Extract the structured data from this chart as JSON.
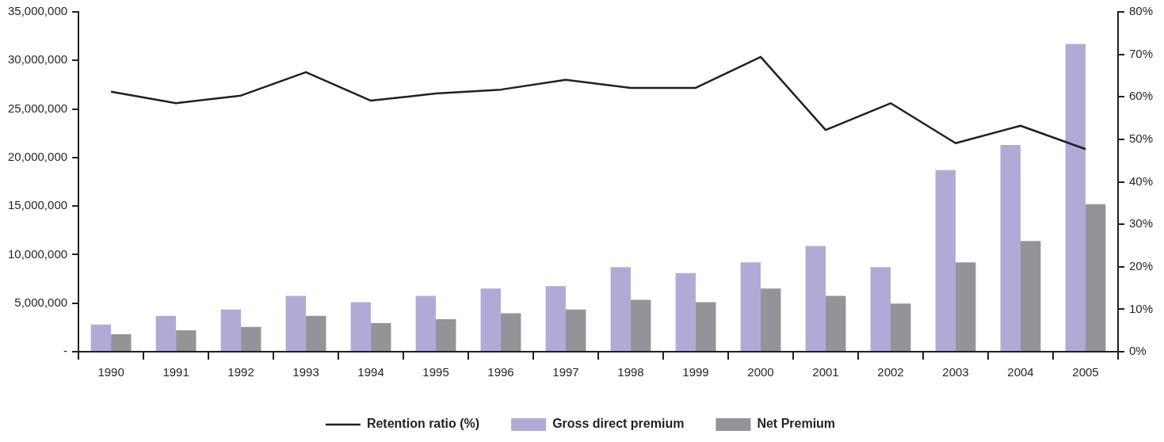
{
  "chart_data": {
    "type": "bar",
    "categories": [
      "1990",
      "1991",
      "1992",
      "1993",
      "1994",
      "1995",
      "1996",
      "1997",
      "1998",
      "1999",
      "2000",
      "2001",
      "2002",
      "2003",
      "2004",
      "2005"
    ],
    "series": [
      {
        "name": "Gross direct premium",
        "color": "#b0abd6",
        "values": [
          2800000,
          3700000,
          4350000,
          5750000,
          5100000,
          5750000,
          6500000,
          6750000,
          8700000,
          8100000,
          9200000,
          10900000,
          8700000,
          18700000,
          21300000,
          31700000
        ]
      },
      {
        "name": "Net Premium",
        "color": "#939498",
        "values": [
          1800000,
          2200000,
          2550000,
          3700000,
          2950000,
          3350000,
          3950000,
          4350000,
          5350000,
          5100000,
          6500000,
          5750000,
          4950000,
          9200000,
          11400000,
          15200000
        ]
      },
      {
        "name": "Retention ratio (%)",
        "type": "line",
        "axis": "y2",
        "color": "#231f20",
        "values": [
          61.2,
          58.5,
          60.3,
          65.8,
          59.1,
          60.8,
          61.7,
          64.0,
          62.1,
          62.1,
          69.4,
          52.2,
          58.5,
          49.1,
          53.2,
          47.7
        ]
      }
    ],
    "ylim": [
      0,
      35000000
    ],
    "yticks": [
      {
        "value": 0,
        "label": "-"
      },
      {
        "value": 5000000,
        "label": "5,000,000"
      },
      {
        "value": 10000000,
        "label": "10,000,000"
      },
      {
        "value": 15000000,
        "label": "15,000,000"
      },
      {
        "value": 20000000,
        "label": "20,000,000"
      },
      {
        "value": 25000000,
        "label": "25,000,000"
      },
      {
        "value": 30000000,
        "label": "30,000,000"
      },
      {
        "value": 35000000,
        "label": "35,000,000"
      }
    ],
    "y2lim": [
      0,
      80
    ],
    "y2ticks": [
      {
        "value": 0,
        "label": "0%"
      },
      {
        "value": 10,
        "label": "10%"
      },
      {
        "value": 20,
        "label": "20%"
      },
      {
        "value": 30,
        "label": "30%"
      },
      {
        "value": 40,
        "label": "40%"
      },
      {
        "value": 50,
        "label": "50%"
      },
      {
        "value": 60,
        "label": "60%"
      },
      {
        "value": 70,
        "label": "70%"
      },
      {
        "value": 80,
        "label": "80%"
      }
    ],
    "grid": false,
    "legend": "bottom",
    "marker": "none"
  }
}
